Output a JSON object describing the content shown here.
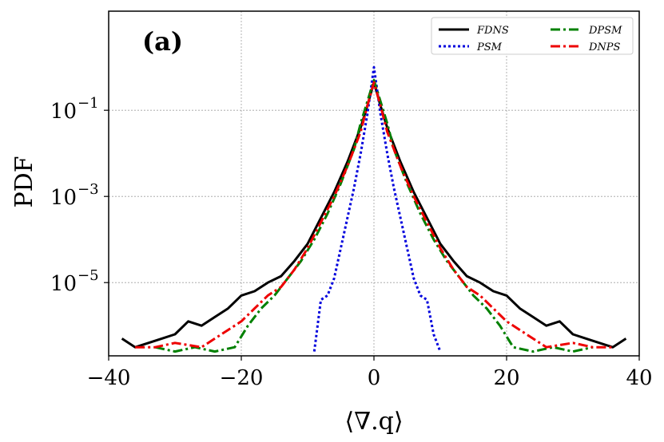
{
  "chart_data": {
    "type": "line",
    "title": "",
    "panel_label": "(a)",
    "xlabel": "⟨∇.q⟩",
    "ylabel": "PDF",
    "xlim": [
      -40,
      40
    ],
    "ylim_log10": [
      -6.7,
      1.3
    ],
    "yscale": "log",
    "grid": true,
    "legend_position": "top-right",
    "xticks": [
      -40,
      -20,
      0,
      20,
      40
    ],
    "xtick_labels": [
      "−40",
      "−20",
      "0",
      "20",
      "40"
    ],
    "yticks_log10": [
      -1,
      -3,
      -5
    ],
    "ytick_bases": [
      "10",
      "10",
      "10"
    ],
    "ytick_exps": [
      "−1",
      "−3",
      "−5"
    ],
    "series": [
      {
        "name": "FDNS",
        "color": "#000000",
        "dash": "",
        "x": [
          -38,
          -36,
          -34,
          -32,
          -30,
          -28,
          -26,
          -24,
          -22,
          -20,
          -18,
          -16,
          -14,
          -12,
          -10,
          -8,
          -6,
          -4,
          -2,
          -1,
          0,
          1,
          2,
          4,
          6,
          8,
          10,
          12,
          14,
          16,
          18,
          20,
          22,
          24,
          26,
          28,
          30,
          32,
          34,
          36,
          38
        ],
        "log10y": [
          -6.3,
          -6.5,
          -6.4,
          -6.3,
          -6.2,
          -5.9,
          -6.0,
          -5.8,
          -5.6,
          -5.3,
          -5.2,
          -5.0,
          -4.85,
          -4.5,
          -4.1,
          -3.5,
          -2.9,
          -2.2,
          -1.4,
          -0.9,
          -0.35,
          -0.9,
          -1.4,
          -2.2,
          -2.9,
          -3.5,
          -4.1,
          -4.5,
          -4.85,
          -5.0,
          -5.2,
          -5.3,
          -5.6,
          -5.8,
          -6.0,
          -5.9,
          -6.2,
          -6.3,
          -6.4,
          -6.5,
          -6.3
        ]
      },
      {
        "name": "PSM",
        "color": "#0000dd",
        "dash": "3 3",
        "x": [
          -9,
          -8,
          -7,
          -6,
          -5,
          -4,
          -3,
          -2,
          -1,
          0,
          1,
          2,
          3,
          4,
          5,
          6,
          7,
          8,
          9,
          10
        ],
        "log10y": [
          -6.6,
          -5.4,
          -5.3,
          -4.9,
          -4.2,
          -3.5,
          -2.8,
          -2.0,
          -1.1,
          0.0,
          -1.1,
          -2.0,
          -2.8,
          -3.5,
          -4.2,
          -4.9,
          -5.3,
          -5.4,
          -6.2,
          -6.6
        ]
      },
      {
        "name": "DPSM",
        "color": "#008000",
        "dash": "12 4 3 4",
        "x": [
          -33,
          -30,
          -27,
          -24,
          -21,
          -19,
          -17,
          -15,
          -13,
          -11,
          -9,
          -7,
          -5,
          -3,
          -2,
          -1,
          0,
          1,
          2,
          3,
          5,
          7,
          9,
          11,
          13,
          15,
          17,
          19,
          21,
          24,
          27,
          30,
          33
        ],
        "log10y": [
          -6.5,
          -6.6,
          -6.5,
          -6.6,
          -6.5,
          -6.0,
          -5.6,
          -5.3,
          -4.9,
          -4.5,
          -4.0,
          -3.4,
          -2.7,
          -1.9,
          -1.3,
          -0.8,
          -0.3,
          -0.8,
          -1.3,
          -1.9,
          -2.7,
          -3.4,
          -4.0,
          -4.5,
          -4.9,
          -5.3,
          -5.6,
          -6.0,
          -6.5,
          -6.6,
          -6.5,
          -6.6,
          -6.5
        ]
      },
      {
        "name": "DNPS",
        "color": "#ee0000",
        "dash": "12 4 3 4",
        "x": [
          -36,
          -33,
          -30,
          -26,
          -22,
          -20,
          -18,
          -16,
          -14,
          -12,
          -10,
          -8,
          -6,
          -4,
          -2,
          -1,
          0,
          1,
          2,
          4,
          6,
          8,
          10,
          12,
          14,
          16,
          18,
          20,
          22,
          26,
          30,
          33,
          36
        ],
        "log10y": [
          -6.5,
          -6.5,
          -6.4,
          -6.5,
          -6.1,
          -5.9,
          -5.6,
          -5.3,
          -5.1,
          -4.7,
          -4.2,
          -3.6,
          -3.0,
          -2.3,
          -1.5,
          -0.9,
          -0.35,
          -0.9,
          -1.5,
          -2.3,
          -3.0,
          -3.6,
          -4.2,
          -4.7,
          -5.1,
          -5.3,
          -5.6,
          -5.9,
          -6.1,
          -6.5,
          -6.4,
          -6.5,
          -6.5
        ]
      }
    ]
  }
}
